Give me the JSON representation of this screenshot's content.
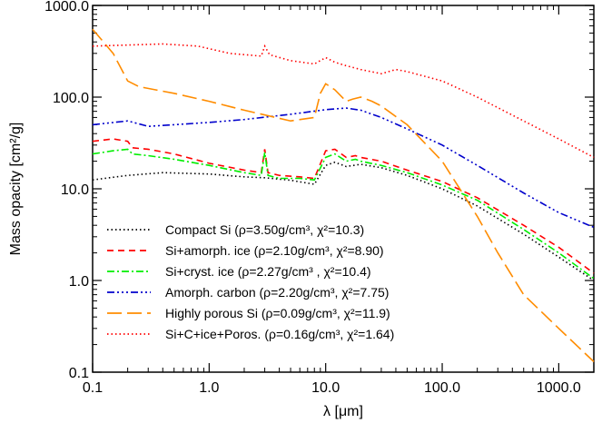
{
  "chart_data": {
    "type": "line",
    "xlabel": "λ [μm]",
    "ylabel": "Mass opacity [cm²/g]",
    "xscale": "log",
    "yscale": "log",
    "xlim": [
      0.1,
      2000
    ],
    "ylim": [
      0.1,
      1000
    ],
    "xticks": [
      {
        "value": 0.1,
        "label": "0.1"
      },
      {
        "value": 1,
        "label": "1.0"
      },
      {
        "value": 10,
        "label": "10.0"
      },
      {
        "value": 100,
        "label": "100.0"
      },
      {
        "value": 1000,
        "label": "1000.0"
      }
    ],
    "yticks": [
      {
        "value": 0.1,
        "label": "0.1"
      },
      {
        "value": 1,
        "label": "1.0"
      },
      {
        "value": 10,
        "label": "10.0"
      },
      {
        "value": 100,
        "label": "100.0"
      },
      {
        "value": 1000,
        "label": "1000.0"
      }
    ],
    "grid": false,
    "legend_position": "bottom-center",
    "series": [
      {
        "name": "Compact Si",
        "legend_text": "Compact Si (ρ=3.50g/cm³, χ²=10.3)",
        "color": "#000000",
        "dash": "dot",
        "x": [
          0.1,
          0.2,
          0.4,
          1,
          2,
          3,
          5,
          8,
          10,
          12,
          15,
          20,
          30,
          50,
          100,
          200,
          500,
          1000,
          2000
        ],
        "y": [
          12.5,
          14,
          15,
          14.5,
          13.5,
          13.2,
          12.4,
          11.2,
          18,
          19.5,
          17.5,
          18.5,
          17,
          14,
          10,
          6.5,
          3.2,
          1.8,
          1.0
        ]
      },
      {
        "name": "Si+amorph. ice",
        "legend_text": "Si+amorph. ice (ρ=2.10g/cm³, χ²=8.90)",
        "color": "#ff0000",
        "dash": "dash",
        "x": [
          0.1,
          0.15,
          0.2,
          0.22,
          0.3,
          0.5,
          1,
          2,
          2.8,
          3.0,
          3.2,
          4,
          6,
          8,
          10,
          12,
          15,
          18,
          20,
          30,
          50,
          100,
          200,
          500,
          1000,
          2000
        ],
        "y": [
          33,
          35,
          33,
          28,
          27,
          24,
          19,
          16,
          15,
          27,
          15,
          14,
          13.5,
          13,
          26,
          27,
          22,
          23,
          22,
          20,
          16,
          12,
          8,
          4,
          2.3,
          1.2
        ]
      },
      {
        "name": "Si+cryst. ice",
        "legend_text": "Si+cryst. ice (ρ=2.27g/cm³ , χ²=10.4)",
        "color": "#00ee00",
        "dash": "dashdot",
        "x": [
          0.1,
          0.15,
          0.2,
          0.22,
          0.3,
          0.5,
          1,
          2,
          2.8,
          3.0,
          3.2,
          4,
          6,
          8,
          10,
          12,
          15,
          18,
          20,
          30,
          50,
          100,
          200,
          500,
          1000,
          2000
        ],
        "y": [
          24,
          26,
          27,
          24,
          23,
          21,
          18,
          15,
          14,
          25,
          14,
          13,
          13,
          12.5,
          22,
          24,
          20,
          21,
          20,
          18,
          15,
          11,
          7.5,
          3.6,
          2,
          1.05
        ]
      },
      {
        "name": "Amorph. carbon",
        "legend_text": "Amorph. carbon (ρ=2.20g/cm³, χ²=7.75)",
        "color": "#0000cc",
        "dash": "dashdotdotdot",
        "x": [
          0.1,
          0.2,
          0.3,
          0.5,
          1,
          2,
          5,
          10,
          15,
          20,
          30,
          50,
          100,
          200,
          500,
          1000,
          2000
        ],
        "y": [
          50,
          55,
          48,
          50,
          53,
          57,
          65,
          73,
          76,
          72,
          60,
          45,
          30,
          18,
          9,
          5.5,
          3.8
        ]
      },
      {
        "name": "Highly porous Si",
        "legend_text": "Highly porous Si (ρ=0.09g/cm³, χ²=11.9)",
        "color": "#ff8c00",
        "dash": "longdash",
        "x": [
          0.1,
          0.15,
          0.2,
          0.25,
          0.5,
          1,
          2,
          5,
          8,
          9,
          10,
          12,
          15,
          17,
          20,
          25,
          30,
          50,
          100,
          200,
          300,
          500,
          1000,
          2000
        ],
        "y": [
          550,
          300,
          150,
          130,
          110,
          90,
          72,
          55,
          60,
          110,
          140,
          120,
          90,
          95,
          100,
          90,
          80,
          50,
          20,
          5,
          2,
          0.7,
          0.3,
          0.13
        ]
      },
      {
        "name": "Si+C+ice+Poros.",
        "legend_text": "Si+C+ice+Poros. (ρ=0.16g/cm³, χ²=1.64)",
        "color": "#ff0000",
        "dash": "dot",
        "x": [
          0.1,
          0.2,
          0.4,
          0.8,
          1.5,
          2.8,
          3.0,
          3.3,
          5,
          8,
          10,
          12,
          15,
          20,
          30,
          40,
          50,
          100,
          200,
          500,
          1000,
          2000
        ],
        "y": [
          360,
          370,
          380,
          360,
          300,
          280,
          360,
          290,
          250,
          230,
          270,
          240,
          220,
          200,
          180,
          200,
          190,
          150,
          100,
          55,
          35,
          22
        ]
      }
    ]
  }
}
